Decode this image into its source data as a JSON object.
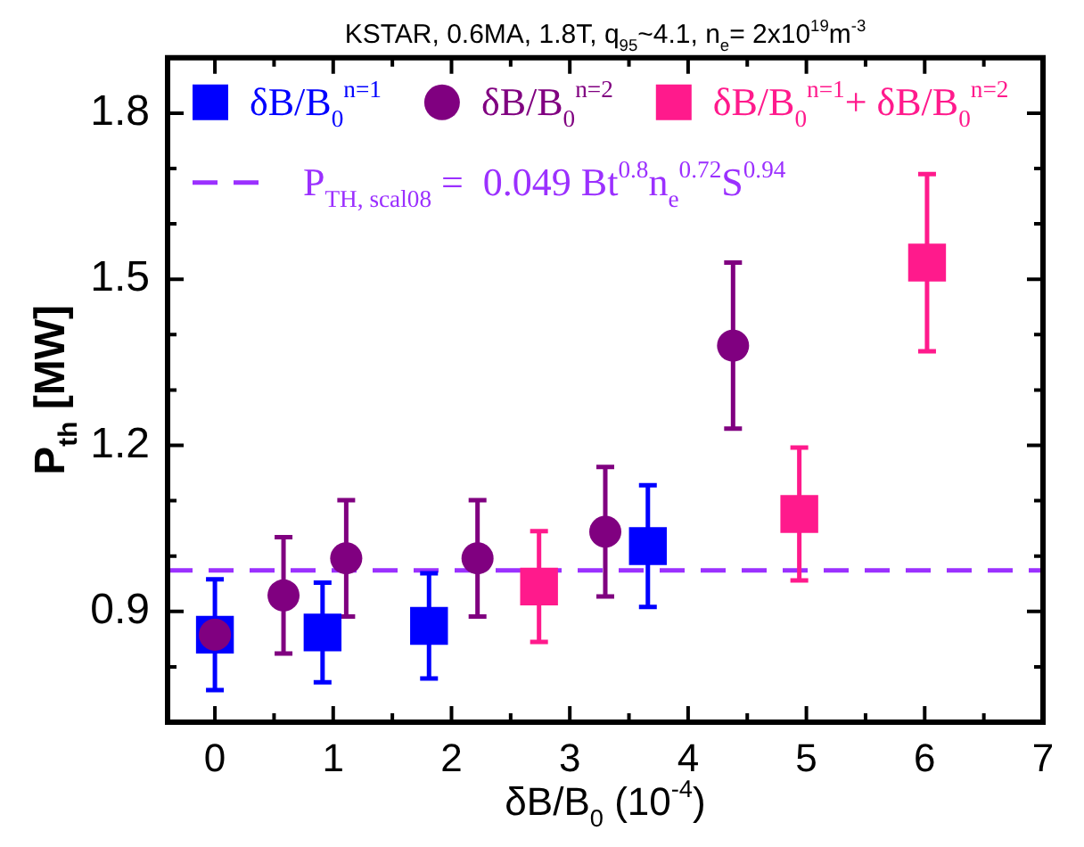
{
  "chart_data": {
    "type": "scatter",
    "title": "KSTAR, 0.6MA, 1.8T, q$_{95}$~4.1, n$_{e}$= 2x10$^{19}$m$^{-3}$",
    "xlabel": "δB/B$_{0}$ (10$^{-4}$)",
    "ylabel": "P$_{th}$ [MW]",
    "xlim": [
      -0.4,
      7
    ],
    "ylim": [
      0.7,
      1.9
    ],
    "xticks": [
      0,
      {
        "value": 0.5,
        "label": null
      },
      1,
      {
        "value": 1.5,
        "label": null
      },
      2,
      {
        "value": 2.5,
        "label": null
      },
      3,
      {
        "value": 3.5,
        "label": null
      },
      4,
      {
        "value": 4.5,
        "label": null
      },
      5,
      {
        "value": 5.5,
        "label": null
      },
      6,
      {
        "value": 6.5,
        "label": null
      },
      7
    ],
    "yticks": [
      {
        "value": 0.8,
        "label": null
      },
      0.9,
      {
        "value": 1.0,
        "label": null
      },
      {
        "value": 1.1,
        "label": null
      },
      1.2,
      {
        "value": 1.3,
        "label": null
      },
      {
        "value": 1.4,
        "label": null
      },
      1.5,
      {
        "value": 1.6,
        "label": null
      },
      {
        "value": 1.7,
        "label": null
      },
      1.8
    ],
    "grid": false,
    "legend": "top",
    "series": [
      {
        "name": "δB/B$_{0}$$^{n=1}$",
        "color": "#0000ff",
        "marker": "square",
        "x": [
          0,
          0.91,
          1.81,
          3.66
        ],
        "values": [
          0.858,
          0.862,
          0.874,
          1.018
        ],
        "errors": [
          0.1,
          0.09,
          0.095,
          0.11
        ]
      },
      {
        "name": "δB/B$_{0}$$^{n=2}$",
        "color": "#800080",
        "marker": "circle",
        "x": [
          0,
          0.58,
          1.11,
          2.22,
          3.3,
          4.38
        ],
        "values": [
          0.858,
          0.929,
          0.996,
          0.996,
          1.044,
          1.38
        ],
        "errors": [
          null,
          0.105,
          0.105,
          0.105,
          0.117,
          0.15
        ]
      },
      {
        "name": "δB/B$_{0}$$^{n=1}$+ δB/B$_{0}$$^{n=2}$",
        "color": "#ff1a8c",
        "marker": "square",
        "x": [
          2.74,
          4.94,
          6.02
        ],
        "values": [
          0.945,
          1.076,
          1.53
        ],
        "errors": [
          0.1,
          0.12,
          0.16
        ]
      }
    ],
    "ref_lines": [
      {
        "axis": "y",
        "value": 0.974,
        "color": "#9b30ff",
        "line_style": "dashed"
      }
    ],
    "annotations": [
      "P$_{TH, scal08}$ =  0.049 Bt$^{0.8}$n$_{e}$$^{0.72}$S$^{0.94}$"
    ]
  }
}
